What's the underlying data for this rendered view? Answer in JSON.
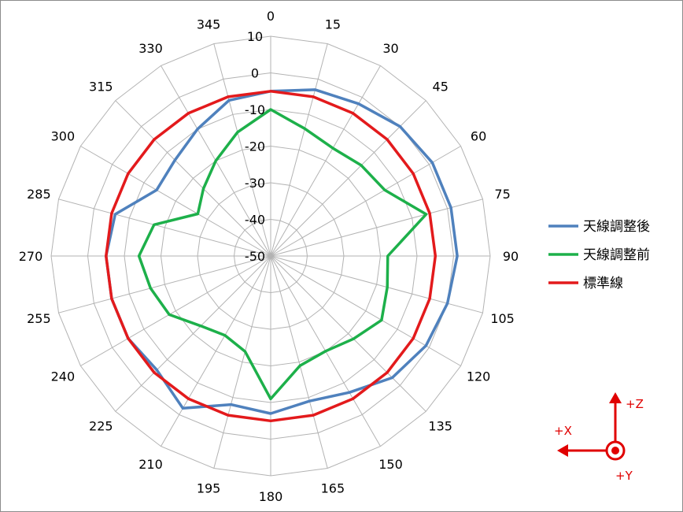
{
  "chart_data": {
    "type": "radar",
    "angle_labels": [
      "0",
      "15",
      "30",
      "45",
      "60",
      "75",
      "90",
      "105",
      "120",
      "135",
      "150",
      "165",
      "180",
      "195",
      "210",
      "225",
      "240",
      "255",
      "270",
      "285",
      "300",
      "315",
      "330",
      "345"
    ],
    "radial_ticks": [
      "10",
      "0",
      "-10",
      "-20",
      "-30",
      "-40",
      "-50"
    ],
    "rlim": [
      -50,
      10
    ],
    "series": [
      {
        "name": "天線調整後",
        "color": "#4f81bd",
        "values": [
          -5,
          -3,
          -2,
          0,
          1,
          1,
          1,
          0,
          -1,
          -3,
          -7,
          -9,
          -7,
          -8,
          -2,
          -6,
          -5,
          -5,
          -5,
          -6,
          -14,
          -13,
          -10,
          -6
        ]
      },
      {
        "name": "天線調整前",
        "color": "#1db04a",
        "values": [
          -10,
          -14,
          -16,
          -15,
          -14,
          -6,
          -18,
          -17,
          -15,
          -18,
          -20,
          -19,
          -11,
          -23,
          -25,
          -23,
          -18,
          -16,
          -14,
          -17,
          -27,
          -24,
          -20,
          -15
        ]
      },
      {
        "name": "標準線",
        "color": "#e31a1c",
        "values": [
          -5,
          -5,
          -5,
          -5,
          -5,
          -5,
          -5,
          -5,
          -5,
          -5,
          -5,
          -5,
          -5,
          -5,
          -5,
          -5,
          -5,
          -5,
          -5,
          -5,
          -5,
          -5,
          -5,
          -5
        ]
      }
    ],
    "legend_position": "right"
  },
  "axis_indicator": {
    "z_label": "+Z",
    "x_label": "+X",
    "y_label": "+Y",
    "color": "#e00000"
  }
}
